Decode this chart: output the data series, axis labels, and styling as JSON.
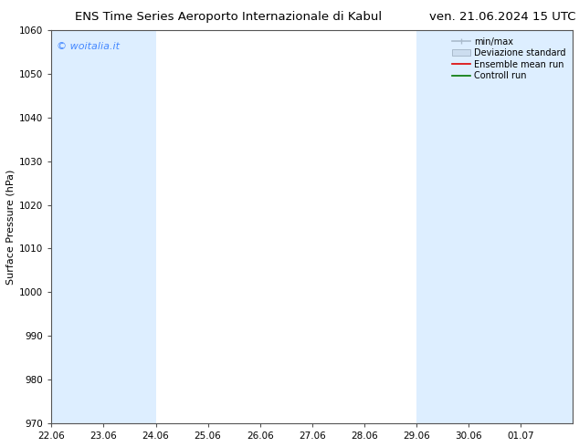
{
  "title_left": "ENS Time Series Aeroporto Internazionale di Kabul",
  "title_right": "ven. 21.06.2024 15 UTC",
  "ylabel": "Surface Pressure (hPa)",
  "ylim": [
    970,
    1060
  ],
  "yticks": [
    970,
    980,
    990,
    1000,
    1010,
    1020,
    1030,
    1040,
    1050,
    1060
  ],
  "xtick_labels": [
    "22.06",
    "23.06",
    "24.06",
    "25.06",
    "26.06",
    "27.06",
    "28.06",
    "29.06",
    "30.06",
    "01.07"
  ],
  "num_days": 10,
  "watermark": "© woitalia.it",
  "watermark_color": "#4488ff",
  "bg_color": "#ffffff",
  "band_color": "#ddeeff",
  "band_alpha": 1.0,
  "band_indices": [
    0,
    1,
    7,
    8,
    9
  ],
  "legend_items": [
    {
      "label": "min/max",
      "color": "#aabbcc",
      "lw": 1.2,
      "style": "minmax"
    },
    {
      "label": "Deviazione standard",
      "color": "#ccddef",
      "lw": 5,
      "style": "band"
    },
    {
      "label": "Ensemble mean run",
      "color": "#dd0000",
      "lw": 1.2,
      "style": "line"
    },
    {
      "label": "Controll run",
      "color": "#007700",
      "lw": 1.2,
      "style": "line"
    }
  ],
  "title_fontsize": 9.5,
  "ylabel_fontsize": 8,
  "tick_fontsize": 7.5,
  "legend_fontsize": 7,
  "watermark_fontsize": 8
}
